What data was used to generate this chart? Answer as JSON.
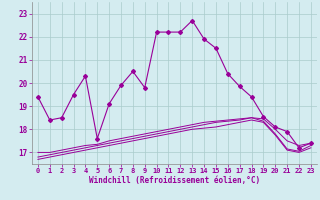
{
  "xlabel": "Windchill (Refroidissement éolien,°C)",
  "bg_color": "#d4ecf0",
  "line_color": "#990099",
  "grid_color": "#aacccc",
  "xlim": [
    -0.5,
    23.5
  ],
  "ylim": [
    16.5,
    23.5
  ],
  "yticks": [
    17,
    18,
    19,
    20,
    21,
    22,
    23
  ],
  "xticks": [
    0,
    1,
    2,
    3,
    4,
    5,
    6,
    7,
    8,
    9,
    10,
    11,
    12,
    13,
    14,
    15,
    16,
    17,
    18,
    19,
    20,
    21,
    22,
    23
  ],
  "main_line_x": [
    0,
    1,
    2,
    3,
    4,
    5,
    6,
    7,
    8,
    9,
    10,
    11,
    12,
    13,
    14,
    15,
    16,
    17,
    18,
    19,
    20,
    21,
    22,
    23
  ],
  "main_line_y": [
    19.4,
    18.4,
    18.5,
    19.5,
    20.3,
    17.6,
    19.1,
    19.9,
    20.5,
    19.8,
    22.2,
    22.2,
    22.2,
    22.7,
    21.9,
    21.5,
    20.4,
    19.85,
    19.4,
    18.55,
    18.1,
    17.9,
    17.2,
    17.4
  ],
  "flat_line1": [
    17.0,
    17.0,
    17.1,
    17.2,
    17.3,
    17.35,
    17.5,
    17.6,
    17.7,
    17.8,
    17.9,
    18.0,
    18.1,
    18.2,
    18.3,
    18.35,
    18.4,
    18.45,
    18.5,
    18.45,
    18.0,
    17.5,
    17.3,
    17.4
  ],
  "flat_line2": [
    16.8,
    16.9,
    17.0,
    17.1,
    17.2,
    17.3,
    17.4,
    17.5,
    17.6,
    17.7,
    17.8,
    17.9,
    18.0,
    18.1,
    18.2,
    18.3,
    18.35,
    18.4,
    18.5,
    18.35,
    17.8,
    17.15,
    17.05,
    17.3
  ],
  "flat_line3": [
    16.7,
    16.8,
    16.9,
    17.0,
    17.1,
    17.2,
    17.3,
    17.4,
    17.5,
    17.6,
    17.7,
    17.8,
    17.9,
    18.0,
    18.05,
    18.1,
    18.2,
    18.3,
    18.4,
    18.3,
    17.75,
    17.1,
    17.0,
    17.2
  ]
}
